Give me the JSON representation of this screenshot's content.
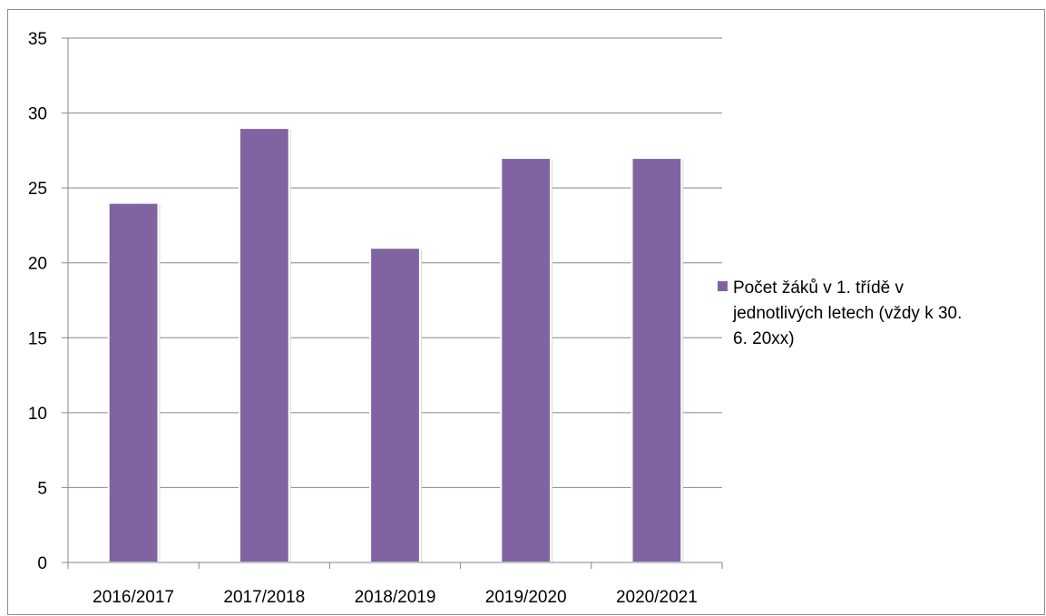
{
  "chart_data": {
    "type": "bar",
    "categories": [
      "2016/2017",
      "2017/2018",
      "2018/2019",
      "2019/2020",
      "2020/2021"
    ],
    "series": [
      {
        "name": "Počet žáků v 1. třídě v jednotlivých letech (vždy k 30. 6. 20xx)",
        "values": [
          24,
          29,
          21,
          27,
          27
        ],
        "color": "#8064a2"
      }
    ],
    "ylim": [
      0,
      35
    ],
    "yticks": [
      0,
      5,
      10,
      15,
      20,
      25,
      30,
      35
    ],
    "grid": true,
    "legend_position": "right",
    "title": "",
    "xlabel": "",
    "ylabel": ""
  }
}
